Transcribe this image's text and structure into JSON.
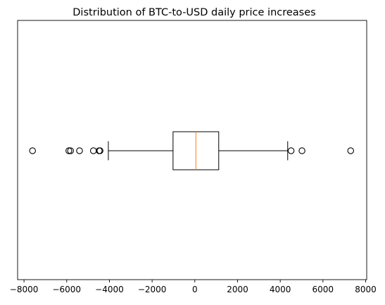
{
  "chart_data": {
    "type": "boxplot",
    "orientation": "horizontal",
    "title": "Distribution of BTC-to-USD daily price increases",
    "xlabel": "",
    "ylabel": "",
    "xlim": [
      -8300,
      8050
    ],
    "xticks": [
      -8000,
      -6000,
      -4000,
      -2000,
      0,
      2000,
      4000,
      6000,
      8000
    ],
    "xtick_labels": [
      "−8000",
      "−6000",
      "−4000",
      "−2000",
      "0",
      "2000",
      "4000",
      "6000",
      "8000"
    ],
    "yticks_shown": false,
    "grid": false,
    "box": {
      "whisker_low": -4050,
      "q1": -1020,
      "median": 50,
      "q3": 1120,
      "whisker_high": 4350
    },
    "outliers": [
      -7600,
      -5900,
      -5820,
      -5400,
      -4750,
      -4480,
      -4440,
      4510,
      5020,
      7300
    ],
    "colors": {
      "box": "#000000",
      "median": "#ff7f0e",
      "outlier_edge": "#000000"
    }
  }
}
